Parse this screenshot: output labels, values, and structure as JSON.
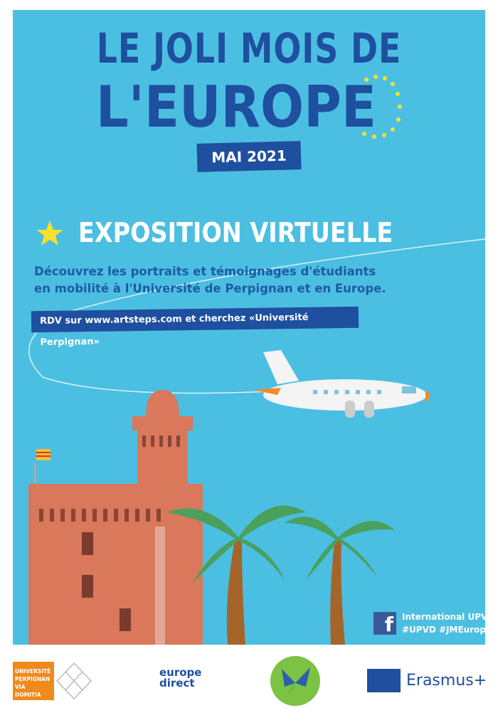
{
  "poster": {
    "title_line1": "LE JOLI MOIS DE",
    "title_line2": "L'EUROPE",
    "date": "MAI 2021",
    "section_title": "EXPOSITION VIRTUELLE",
    "description_line1": "Découvrez les portraits et témoignages d'étudiants",
    "description_line2": "en mobilité à l'Université de Perpignan et en Europe.",
    "rdv": "RDV sur www.artsteps.com et cherchez «Université Perpignan»",
    "social_name": "International UPVD",
    "hashtags": "#UPVD #JMEurope"
  },
  "logos": {
    "upvd": [
      "UNIVERSITÉ",
      "PERPIGNAN",
      "VIA",
      "DOMITIA"
    ],
    "europe_direct_1": "europe",
    "europe_direct_2": "direct",
    "erasmus": "Erasmus+"
  },
  "colors": {
    "sky": "#4bbfe2",
    "title": "#1f4f9f",
    "tower": "#d9785a",
    "star": "#f7e12b"
  }
}
